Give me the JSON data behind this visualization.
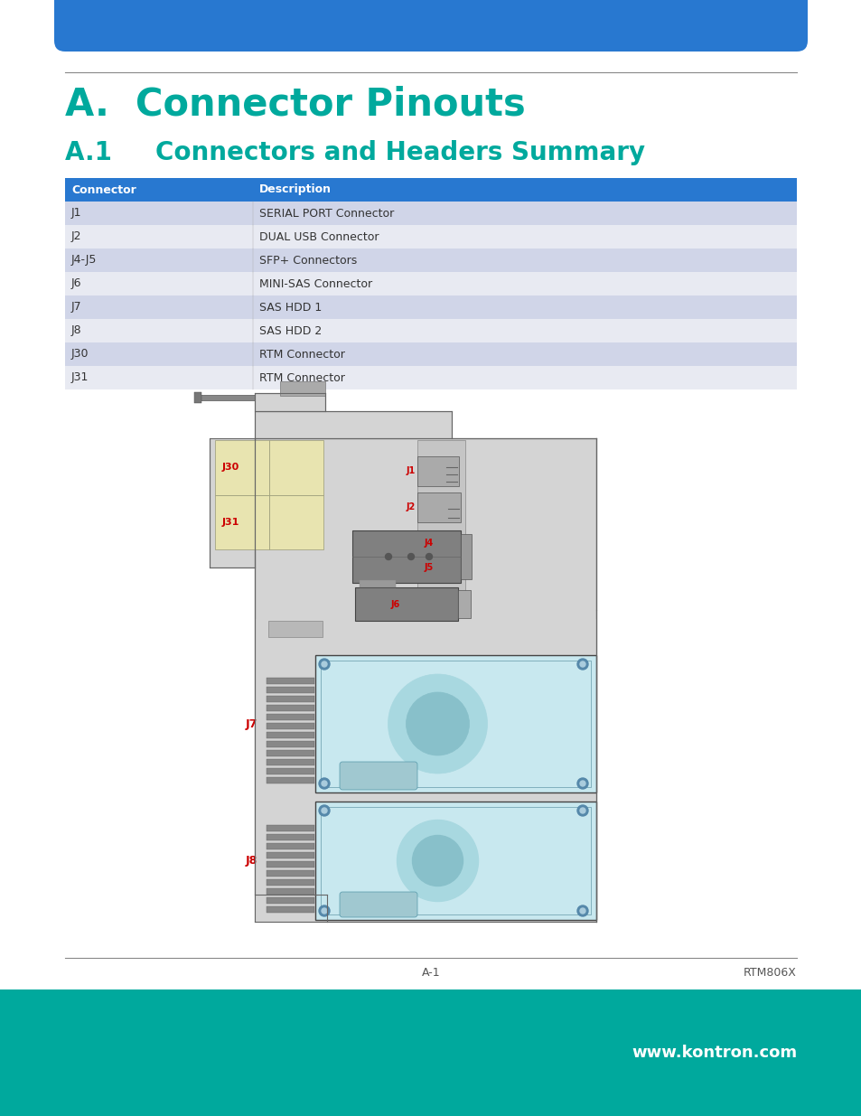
{
  "title_main": "A.  Connector Pinouts",
  "title_sub": "A.1     Connectors and Headers Summary",
  "table_header": [
    "Connector",
    "Description"
  ],
  "table_rows": [
    [
      "J1",
      "SERIAL PORT Connector"
    ],
    [
      "J2",
      "DUAL USB Connector"
    ],
    [
      "J4-J5",
      "SFP+ Connectors"
    ],
    [
      "J6",
      "MINI-SAS Connector"
    ],
    [
      "J7",
      "SAS HDD 1"
    ],
    [
      "J8",
      "SAS HDD 2"
    ],
    [
      "J30",
      "RTM Connector"
    ],
    [
      "J31",
      "RTM Connector"
    ]
  ],
  "header_bg": "#2878d0",
  "header_fg": "#ffffff",
  "row_even_bg": "#d0d5e8",
  "row_odd_bg": "#e8eaf2",
  "teal_color": "#00a99d",
  "top_bar_color": "#2878d0",
  "bottom_bar_color": "#00a99d",
  "footer_left": "A-1",
  "footer_right": "RTM806X",
  "footer_url": "www.kontron.com",
  "line_color": "#555555",
  "bg_color": "#ffffff",
  "connector_red": "#cc0000",
  "pcb_bg": "#d4d4d4",
  "hdd_bg": "#c8e8ef",
  "j30_bg": "#e8e4b0",
  "dark_connector": "#808080"
}
